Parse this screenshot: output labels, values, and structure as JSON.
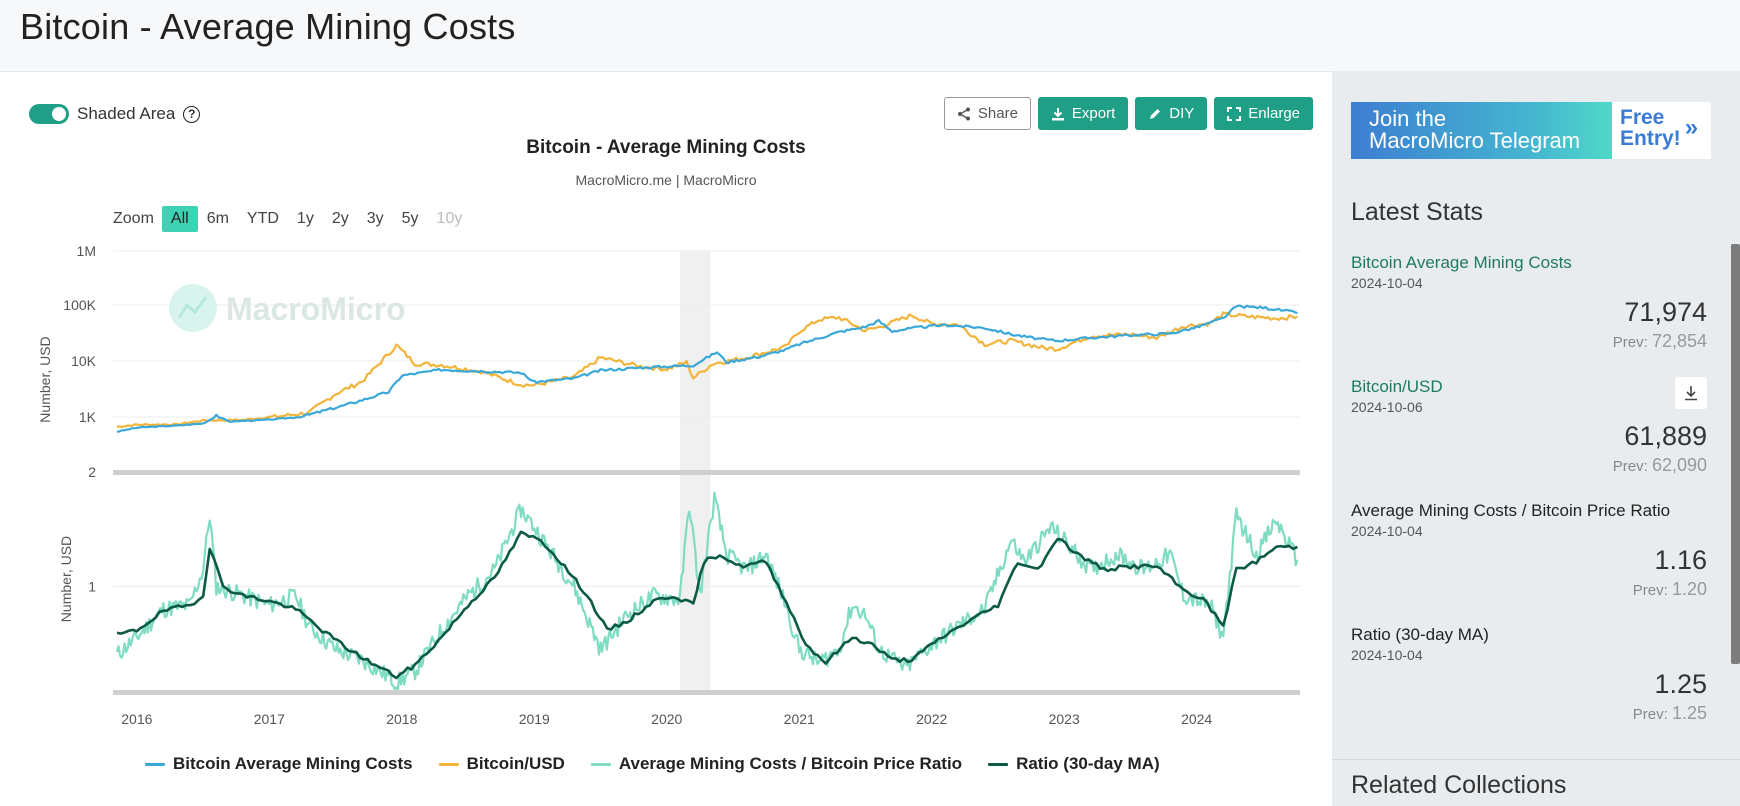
{
  "page": {
    "title": "Bitcoin - Average Mining Costs"
  },
  "controls": {
    "shaded_area_label": "Shaded Area",
    "help_glyph": "?",
    "share_label": "Share",
    "export_label": "Export",
    "diy_label": "DIY",
    "enlarge_label": "Enlarge"
  },
  "zoom": {
    "label": "Zoom",
    "options": [
      "All",
      "6m",
      "YTD",
      "1y",
      "2y",
      "3y",
      "5y",
      "10y"
    ],
    "active": "All",
    "disabled": [
      "10y"
    ]
  },
  "watermark": "MacroMicro",
  "colors": {
    "mining_cost": "#3aa8d8",
    "btc_usd": "#f2b43a",
    "ratio": "#7fdcc2",
    "ratio_ma": "#0c5a45",
    "accent": "#1f9f86",
    "link": "#1f7a5f"
  },
  "chart_data": {
    "type": "line",
    "title": "Bitcoin - Average Mining Costs",
    "subtitle": "MacroMicro.me | MacroMicro",
    "x_ticks": [
      "2016",
      "2017",
      "2018",
      "2019",
      "2020",
      "2021",
      "2022",
      "2023",
      "2024"
    ],
    "x_range": [
      2015.82,
      2024.78
    ],
    "shaded_range": [
      2020.1,
      2020.33
    ],
    "panels": [
      {
        "ylabel": "Number, USD",
        "y_scale": "log",
        "y_ticks": [
          "2",
          "1K",
          "10K",
          "100K",
          "1M"
        ],
        "ylim": [
          2,
          1000000
        ],
        "series": [
          {
            "name": "Bitcoin Average Mining Costs",
            "color_key": "mining_cost",
            "points": [
              [
                2015.85,
                190
              ],
              [
                2016.0,
                300
              ],
              [
                2016.3,
                380
              ],
              [
                2016.5,
                480
              ],
              [
                2016.6,
                1100
              ],
              [
                2016.7,
                600
              ],
              [
                2017.0,
                740
              ],
              [
                2017.3,
                1100
              ],
              [
                2017.6,
                1700
              ],
              [
                2017.9,
                2800
              ],
              [
                2018.0,
                5500
              ],
              [
                2018.3,
                7000
              ],
              [
                2018.6,
                6600
              ],
              [
                2018.9,
                6200
              ],
              [
                2019.0,
                4200
              ],
              [
                2019.3,
                4900
              ],
              [
                2019.5,
                6800
              ],
              [
                2019.8,
                7600
              ],
              [
                2020.0,
                8000
              ],
              [
                2020.2,
                8400
              ],
              [
                2020.38,
                14500
              ],
              [
                2020.45,
                9500
              ],
              [
                2020.7,
                12000
              ],
              [
                2020.9,
                16000
              ],
              [
                2021.0,
                20000
              ],
              [
                2021.3,
                33000
              ],
              [
                2021.5,
                41000
              ],
              [
                2021.6,
                52000
              ],
              [
                2021.7,
                34000
              ],
              [
                2021.9,
                40000
              ],
              [
                2022.1,
                44000
              ],
              [
                2022.4,
                39000
              ],
              [
                2022.6,
                30000
              ],
              [
                2022.8,
                25000
              ],
              [
                2022.95,
                23000
              ],
              [
                2023.2,
                26000
              ],
              [
                2023.5,
                29000
              ],
              [
                2023.8,
                31000
              ],
              [
                2024.0,
                40000
              ],
              [
                2024.2,
                58000
              ],
              [
                2024.3,
                95000
              ],
              [
                2024.5,
                90000
              ],
              [
                2024.7,
                77000
              ],
              [
                2024.76,
                72000
              ]
            ]
          },
          {
            "name": "Bitcoin/USD",
            "color_key": "btc_usd",
            "points": [
              [
                2015.85,
                330
              ],
              [
                2016.0,
                420
              ],
              [
                2016.3,
                430
              ],
              [
                2016.5,
                680
              ],
              [
                2016.8,
                720
              ],
              [
                2017.0,
                980
              ],
              [
                2017.3,
                1200
              ],
              [
                2017.5,
                2600
              ],
              [
                2017.7,
                4300
              ],
              [
                2017.96,
                19000
              ],
              [
                2018.1,
                9000
              ],
              [
                2018.3,
                8500
              ],
              [
                2018.6,
                6500
              ],
              [
                2018.9,
                3800
              ],
              [
                2019.0,
                3700
              ],
              [
                2019.3,
                5200
              ],
              [
                2019.5,
                11500
              ],
              [
                2019.8,
                8000
              ],
              [
                2020.0,
                7200
              ],
              [
                2020.15,
                9500
              ],
              [
                2020.2,
                5000
              ],
              [
                2020.35,
                9000
              ],
              [
                2020.6,
                11500
              ],
              [
                2020.9,
                18000
              ],
              [
                2021.0,
                34000
              ],
              [
                2021.15,
                55000
              ],
              [
                2021.3,
                60000
              ],
              [
                2021.5,
                35000
              ],
              [
                2021.6,
                40000
              ],
              [
                2021.85,
                66000
              ],
              [
                2022.0,
                46000
              ],
              [
                2022.2,
                45000
              ],
              [
                2022.4,
                20000
              ],
              [
                2022.6,
                23000
              ],
              [
                2022.85,
                17000
              ],
              [
                2022.95,
                16500
              ],
              [
                2023.2,
                28000
              ],
              [
                2023.5,
                30000
              ],
              [
                2023.7,
                26000
              ],
              [
                2023.9,
                42000
              ],
              [
                2024.1,
                47000
              ],
              [
                2024.2,
                68000
              ],
              [
                2024.4,
                62000
              ],
              [
                2024.6,
                58000
              ],
              [
                2024.76,
                62000
              ]
            ]
          }
        ]
      },
      {
        "ylabel": "Number, USD",
        "y_scale": "log",
        "y_ticks": [
          "1"
        ],
        "ylim": [
          0.55,
          1.65
        ],
        "series": [
          {
            "name": "Average Mining Costs / Bitcoin Price Ratio",
            "color_key": "ratio",
            "points": [
              [
                2015.85,
                0.68
              ],
              [
                2016.0,
                0.75
              ],
              [
                2016.2,
                0.88
              ],
              [
                2016.4,
                0.9
              ],
              [
                2016.5,
                1.1
              ],
              [
                2016.55,
                1.5
              ],
              [
                2016.6,
                1.0
              ],
              [
                2016.8,
                0.95
              ],
              [
                2017.0,
                0.9
              ],
              [
                2017.2,
                0.95
              ],
              [
                2017.3,
                0.8
              ],
              [
                2017.5,
                0.7
              ],
              [
                2017.7,
                0.66
              ],
              [
                2017.9,
                0.6
              ],
              [
                2017.96,
                0.58
              ],
              [
                2018.1,
                0.62
              ],
              [
                2018.3,
                0.78
              ],
              [
                2018.5,
                0.95
              ],
              [
                2018.7,
                1.1
              ],
              [
                2018.9,
                1.55
              ],
              [
                2019.0,
                1.4
              ],
              [
                2019.1,
                1.25
              ],
              [
                2019.3,
                1.0
              ],
              [
                2019.5,
                0.7
              ],
              [
                2019.7,
                0.85
              ],
              [
                2019.9,
                0.95
              ],
              [
                2020.1,
                0.93
              ],
              [
                2020.17,
                1.6
              ],
              [
                2020.25,
                0.95
              ],
              [
                2020.36,
                1.65
              ],
              [
                2020.45,
                1.2
              ],
              [
                2020.6,
                1.1
              ],
              [
                2020.75,
                1.2
              ],
              [
                2020.9,
                0.9
              ],
              [
                2021.0,
                0.7
              ],
              [
                2021.15,
                0.65
              ],
              [
                2021.3,
                0.7
              ],
              [
                2021.4,
                0.9
              ],
              [
                2021.5,
                0.85
              ],
              [
                2021.6,
                0.7
              ],
              [
                2021.8,
                0.63
              ],
              [
                2022.0,
                0.72
              ],
              [
                2022.2,
                0.8
              ],
              [
                2022.4,
                0.88
              ],
              [
                2022.6,
                1.3
              ],
              [
                2022.7,
                1.15
              ],
              [
                2022.9,
                1.4
              ],
              [
                2023.0,
                1.3
              ],
              [
                2023.2,
                1.1
              ],
              [
                2023.4,
                1.2
              ],
              [
                2023.6,
                1.1
              ],
              [
                2023.8,
                1.2
              ],
              [
                2023.9,
                0.95
              ],
              [
                2024.1,
                0.9
              ],
              [
                2024.2,
                0.75
              ],
              [
                2024.3,
                1.5
              ],
              [
                2024.45,
                1.2
              ],
              [
                2024.6,
                1.45
              ],
              [
                2024.76,
                1.16
              ]
            ]
          },
          {
            "name": "Ratio (30-day MA)",
            "color_key": "ratio_ma",
            "points": [
              [
                2015.85,
                0.76
              ],
              [
                2016.0,
                0.78
              ],
              [
                2016.2,
                0.87
              ],
              [
                2016.4,
                0.9
              ],
              [
                2016.5,
                0.95
              ],
              [
                2016.55,
                1.25
              ],
              [
                2016.65,
                1.0
              ],
              [
                2016.8,
                0.95
              ],
              [
                2017.0,
                0.92
              ],
              [
                2017.2,
                0.88
              ],
              [
                2017.4,
                0.78
              ],
              [
                2017.6,
                0.7
              ],
              [
                2017.8,
                0.64
              ],
              [
                2017.96,
                0.6
              ],
              [
                2018.1,
                0.64
              ],
              [
                2018.3,
                0.75
              ],
              [
                2018.5,
                0.9
              ],
              [
                2018.7,
                1.05
              ],
              [
                2018.9,
                1.35
              ],
              [
                2019.05,
                1.3
              ],
              [
                2019.2,
                1.15
              ],
              [
                2019.4,
                0.95
              ],
              [
                2019.55,
                0.78
              ],
              [
                2019.7,
                0.82
              ],
              [
                2019.9,
                0.92
              ],
              [
                2020.05,
                0.95
              ],
              [
                2020.2,
                0.9
              ],
              [
                2020.28,
                1.15
              ],
              [
                2020.4,
                1.2
              ],
              [
                2020.55,
                1.12
              ],
              [
                2020.75,
                1.15
              ],
              [
                2020.9,
                0.92
              ],
              [
                2021.05,
                0.72
              ],
              [
                2021.2,
                0.65
              ],
              [
                2021.4,
                0.75
              ],
              [
                2021.55,
                0.72
              ],
              [
                2021.7,
                0.66
              ],
              [
                2021.85,
                0.66
              ],
              [
                2022.05,
                0.74
              ],
              [
                2022.3,
                0.83
              ],
              [
                2022.5,
                0.9
              ],
              [
                2022.65,
                1.15
              ],
              [
                2022.8,
                1.1
              ],
              [
                2022.95,
                1.32
              ],
              [
                2023.1,
                1.2
              ],
              [
                2023.3,
                1.1
              ],
              [
                2023.5,
                1.12
              ],
              [
                2023.7,
                1.12
              ],
              [
                2023.9,
                0.98
              ],
              [
                2024.05,
                0.93
              ],
              [
                2024.2,
                0.8
              ],
              [
                2024.3,
                1.1
              ],
              [
                2024.45,
                1.15
              ],
              [
                2024.6,
                1.25
              ],
              [
                2024.76,
                1.25
              ]
            ]
          }
        ]
      }
    ],
    "legend": [
      "Bitcoin Average Mining Costs",
      "Bitcoin/USD",
      "Average Mining Costs / Bitcoin Price Ratio",
      "Ratio (30-day MA)"
    ]
  },
  "sidebar": {
    "banner": {
      "line1": "Join the",
      "line2": "MacroMicro Telegram",
      "cta1": "Free",
      "cta2": "Entry!",
      "cta_glyph": "»"
    },
    "latest_title": "Latest Stats",
    "stats": [
      {
        "name": "Bitcoin Average Mining Costs",
        "date": "2024-10-04",
        "value": "71,974",
        "prev_label": "Prev:",
        "prev": "72,854",
        "link": true
      },
      {
        "name": "Bitcoin/USD",
        "date": "2024-10-06",
        "value": "61,889",
        "prev_label": "Prev:",
        "prev": "62,090",
        "link": true
      },
      {
        "name": "Average Mining Costs / Bitcoin Price Ratio",
        "date": "2024-10-04",
        "value": "1.16",
        "prev_label": "Prev:",
        "prev": "1.20",
        "link": false
      },
      {
        "name": "Ratio (30-day MA)",
        "date": "2024-10-04",
        "value": "1.25",
        "prev_label": "Prev:",
        "prev": "1.25",
        "link": false
      }
    ],
    "related_title": "Related Collections"
  }
}
